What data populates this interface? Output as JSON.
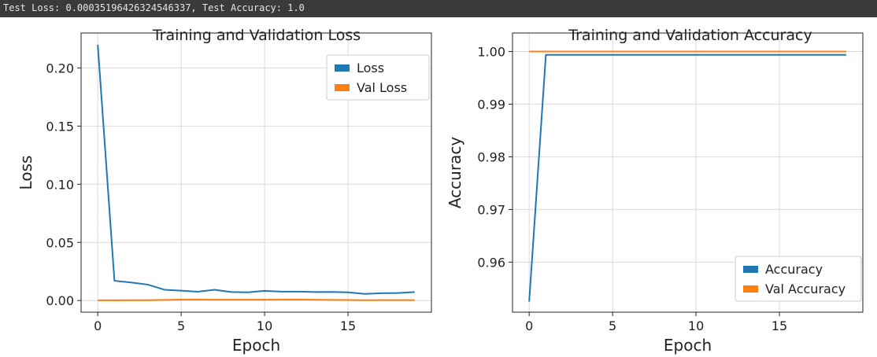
{
  "console": {
    "output": "Test Loss: 0.00035196426324546337, Test Accuracy: 1.0"
  },
  "colors": {
    "series_blue": "#1f77b4",
    "series_orange": "#ff7f0e",
    "grid": "#d9d9d9",
    "console_bg": "#3a3a3a"
  },
  "chart_data": [
    {
      "type": "line",
      "title": "Training and Validation Loss",
      "xlabel": "Epoch",
      "ylabel": "Loss",
      "xlim": [
        -1,
        20
      ],
      "ylim": [
        -0.01,
        0.23
      ],
      "xticks": [
        0,
        5,
        10,
        15
      ],
      "yticks": [
        0.0,
        0.05,
        0.1,
        0.15,
        0.2
      ],
      "ytick_labels": [
        "0.00",
        "0.05",
        "0.10",
        "0.15",
        "0.20"
      ],
      "grid": true,
      "legend_position": "top-right",
      "x": [
        0,
        1,
        2,
        3,
        4,
        5,
        6,
        7,
        8,
        9,
        10,
        11,
        12,
        13,
        14,
        15,
        16,
        17,
        18,
        19
      ],
      "series": [
        {
          "name": "Loss",
          "color": "#1f77b4",
          "values": [
            0.22,
            0.017,
            0.0155,
            0.0137,
            0.0093,
            0.0085,
            0.0076,
            0.0093,
            0.0073,
            0.0071,
            0.0083,
            0.0077,
            0.0077,
            0.0073,
            0.0074,
            0.0071,
            0.0057,
            0.0063,
            0.0065,
            0.0073
          ]
        },
        {
          "name": "Val Loss",
          "color": "#ff7f0e",
          "values": [
            0.0002,
            0.0002,
            0.0003,
            0.0003,
            0.0006,
            0.0008,
            0.0008,
            0.0007,
            0.0007,
            0.0007,
            0.0007,
            0.0008,
            0.0008,
            0.0007,
            0.0006,
            0.0005,
            0.0003,
            0.0004,
            0.0004,
            0.0004
          ]
        }
      ]
    },
    {
      "type": "line",
      "title": "Training and Validation Accuracy",
      "xlabel": "Epoch",
      "ylabel": "Accuracy",
      "xlim": [
        -1,
        20
      ],
      "ylim": [
        0.9505,
        1.0035
      ],
      "xticks": [
        0,
        5,
        10,
        15
      ],
      "yticks": [
        0.96,
        0.97,
        0.98,
        0.99,
        1.0
      ],
      "ytick_labels": [
        "0.96",
        "0.97",
        "0.98",
        "0.99",
        "1.00"
      ],
      "grid": true,
      "legend_position": "bottom-right",
      "x": [
        0,
        1,
        2,
        3,
        4,
        5,
        6,
        7,
        8,
        9,
        10,
        11,
        12,
        13,
        14,
        15,
        16,
        17,
        18,
        19
      ],
      "series": [
        {
          "name": "Accuracy",
          "color": "#1f77b4",
          "values": [
            0.9525,
            0.99935,
            0.99935,
            0.99935,
            0.99935,
            0.99935,
            0.99935,
            0.99935,
            0.99935,
            0.99935,
            0.99935,
            0.99935,
            0.99935,
            0.99935,
            0.99935,
            0.99935,
            0.99935,
            0.99935,
            0.99935,
            0.99935
          ]
        },
        {
          "name": "Val Accuracy",
          "color": "#ff7f0e",
          "values": [
            1.0,
            1.0,
            1.0,
            1.0,
            1.0,
            1.0,
            1.0,
            1.0,
            1.0,
            1.0,
            1.0,
            1.0,
            1.0,
            1.0,
            1.0,
            1.0,
            1.0,
            1.0,
            1.0,
            1.0
          ]
        }
      ]
    }
  ]
}
